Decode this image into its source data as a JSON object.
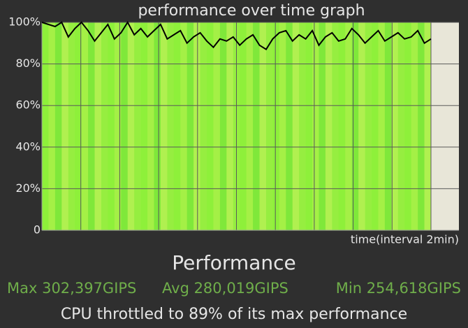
{
  "chart_data": {
    "type": "line",
    "title": "performance over time graph",
    "x_label": "time(interval 2min)",
    "heading": "Performance",
    "stats": [
      "Max 302,397GIPS",
      "Avg 280,019GIPS",
      "Min 254,618GIPS"
    ],
    "summary": "CPU throttled to 89% of its max performance",
    "series": [
      {
        "color": "#000000",
        "values": [
          100,
          99,
          98,
          100,
          93,
          97,
          100,
          96,
          91,
          95,
          99,
          92,
          95,
          100,
          94,
          97,
          93,
          96,
          99,
          92,
          94,
          96,
          90,
          93,
          95,
          91,
          88,
          92,
          91,
          93,
          89,
          92,
          94,
          89,
          87,
          92,
          95,
          96,
          91,
          94,
          92,
          96,
          89,
          93,
          95,
          91,
          92,
          97,
          94,
          90,
          93,
          96,
          91,
          93,
          95,
          92,
          93,
          96,
          90,
          92
        ]
      }
    ],
    "ylim": [
      0,
      100
    ],
    "yticks": [
      0,
      {
        "value": 20,
        "label": "20%"
      },
      {
        "value": 40,
        "label": "40%"
      },
      {
        "value": 60,
        "label": "60%"
      },
      {
        "value": 80,
        "label": "80%"
      },
      {
        "value": 100,
        "label": "100%"
      }
    ],
    "grid": true
  }
}
